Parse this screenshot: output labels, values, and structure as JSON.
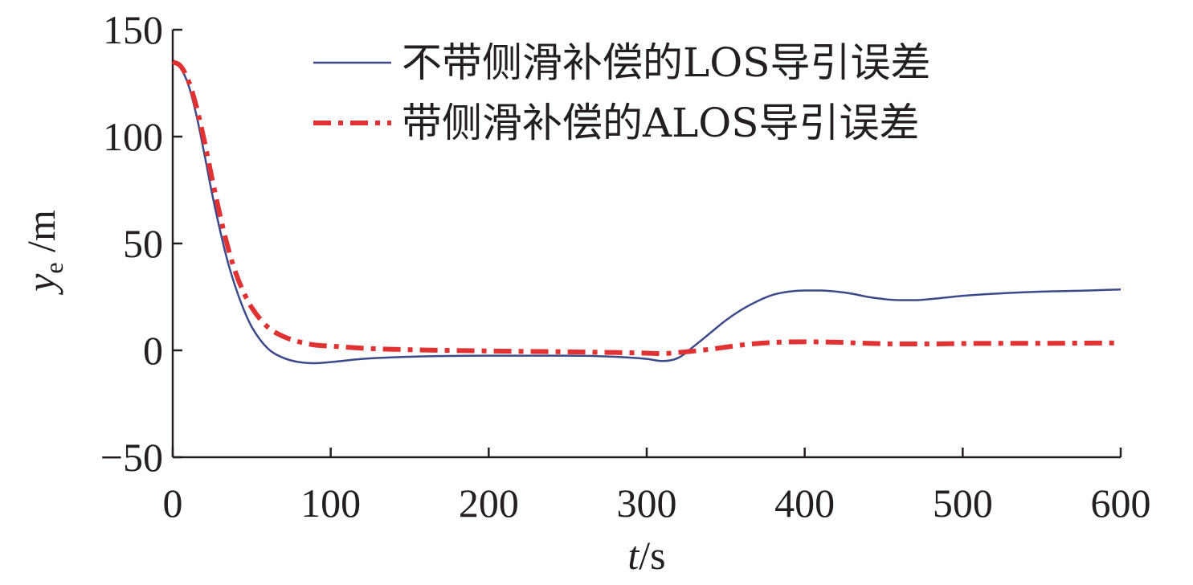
{
  "chart_data": {
    "type": "line",
    "xlabel": {
      "var": "t",
      "unit": "/s"
    },
    "ylabel": {
      "var": "y",
      "sub": "e",
      "unit": " /m"
    },
    "xlim": [
      0,
      600
    ],
    "ylim": [
      -50,
      150
    ],
    "xticks": [
      0,
      100,
      200,
      300,
      400,
      500,
      600
    ],
    "yticks": [
      -50,
      0,
      50,
      100,
      150
    ],
    "xtick_labels": [
      "0",
      "100",
      "200",
      "300",
      "400",
      "500",
      "600"
    ],
    "ytick_labels": [
      "−50",
      "0",
      "50",
      "100",
      "150"
    ],
    "grid": false,
    "legend_position": "top-right",
    "series": [
      {
        "name": "不带侧滑补偿的LOS导引误差",
        "color": "#3d4a8a",
        "style": "solid",
        "x": [
          0,
          5,
          10,
          15,
          20,
          25,
          30,
          35,
          40,
          45,
          50,
          60,
          70,
          80,
          90,
          100,
          120,
          150,
          200,
          250,
          280,
          300,
          310,
          320,
          330,
          340,
          350,
          360,
          370,
          380,
          390,
          400,
          410,
          420,
          430,
          440,
          450,
          460,
          470,
          480,
          500,
          520,
          550,
          580,
          600
        ],
        "y": [
          135,
          132,
          124,
          110,
          92,
          73,
          56,
          41,
          29,
          19,
          11,
          1,
          -3.5,
          -5.5,
          -6,
          -5.5,
          -4,
          -3,
          -2.5,
          -2.5,
          -3,
          -4,
          -5,
          -3.5,
          2,
          8,
          14,
          19,
          23,
          26,
          27.5,
          28,
          28,
          27.5,
          26.5,
          25,
          24,
          23.5,
          23.5,
          24,
          25.5,
          26.5,
          27.5,
          28,
          28.5
        ]
      },
      {
        "name": "带侧滑补偿的ALOS导引误差",
        "color": "#e03232",
        "style": "dashdot",
        "x": [
          0,
          5,
          10,
          15,
          20,
          25,
          30,
          35,
          40,
          45,
          50,
          60,
          70,
          80,
          90,
          100,
          120,
          150,
          200,
          250,
          280,
          300,
          310,
          320,
          330,
          340,
          350,
          360,
          370,
          380,
          400,
          420,
          440,
          460,
          480,
          500,
          550,
          600
        ],
        "y": [
          135,
          133,
          126,
          114,
          98,
          80,
          63,
          48,
          36,
          27,
          20,
          11,
          6.5,
          4,
          2.5,
          2,
          1,
          0.3,
          -0.3,
          -0.7,
          -1,
          -1.3,
          -1.5,
          -1,
          -0.3,
          0.5,
          1.5,
          2.5,
          3.2,
          3.7,
          4,
          3.8,
          3.3,
          3,
          3,
          3.2,
          3.3,
          3.5
        ]
      }
    ]
  }
}
